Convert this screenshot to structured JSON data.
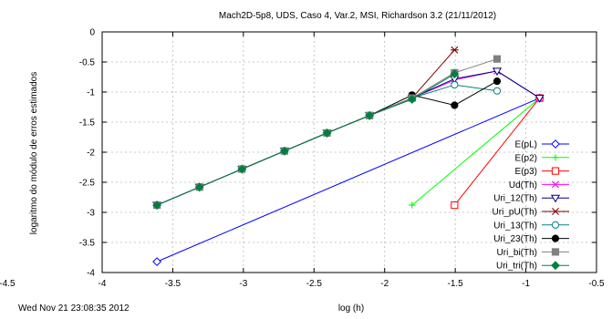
{
  "chart_data": {
    "type": "line",
    "title": "Mach2D-5p8, UDS, Caso 4, Var.2, MSI, Richardson 3.2 (21/11/2012)",
    "xlabel": "log (h)",
    "ylabel": "logaritmo do módulo de erros estimados",
    "footer_timestamp": "Wed Nov 21 23:08:35 2012",
    "corner_tick_left": "-4.5",
    "xlim": [
      -4,
      -0.5
    ],
    "ylim": [
      -4,
      0
    ],
    "xticks": [
      -4,
      -3.5,
      -3,
      -2.5,
      -2,
      -1.5,
      -1,
      -0.5
    ],
    "xtick_labels": [
      "-4",
      "-3.5",
      "-3",
      "-2.5",
      "-2",
      "-1.5",
      "-1",
      "-0.5"
    ],
    "yticks": [
      0,
      -0.5,
      -1,
      -1.5,
      -2,
      -2.5,
      -3,
      -3.5,
      -4
    ],
    "ytick_labels": [
      "0",
      "-0.5",
      "-1",
      "-1.5",
      "-2",
      "-2.5",
      "-3",
      "-3.5",
      "-4"
    ],
    "grid": true,
    "legend_position": "right",
    "series": [
      {
        "name": "E(pL)",
        "color": "#0000ff",
        "marker": "diamond",
        "x": [
          -3.612,
          -0.903
        ],
        "y": [
          -3.82,
          -1.1
        ]
      },
      {
        "name": "E(p2)",
        "color": "#00ff00",
        "marker": "plus",
        "x": [
          -1.806,
          -0.903
        ],
        "y": [
          -2.88,
          -1.1
        ]
      },
      {
        "name": "E(p3)",
        "color": "#ff0000",
        "marker": "square-open",
        "x": [
          -1.505,
          -0.903
        ],
        "y": [
          -2.88,
          -1.1
        ]
      },
      {
        "name": "Ud(Th)",
        "color": "#ff00ff",
        "marker": "x",
        "x": [
          -3.612,
          -3.311,
          -3.01,
          -2.709,
          -2.408,
          -2.107,
          -1.806,
          -1.505,
          -1.204,
          -0.903
        ],
        "y": [
          -2.88,
          -2.58,
          -2.28,
          -1.98,
          -1.68,
          -1.39,
          -1.1,
          -0.8,
          -0.65,
          -1.1
        ]
      },
      {
        "name": "Uri_12(Th)",
        "color": "#000080",
        "marker": "triangle-down",
        "x": [
          -3.612,
          -3.311,
          -3.01,
          -2.709,
          -2.408,
          -2.107,
          -1.806,
          -1.505,
          -1.204,
          -0.903
        ],
        "y": [
          -2.88,
          -2.58,
          -2.28,
          -1.98,
          -1.68,
          -1.39,
          -1.1,
          -0.78,
          -0.65,
          -1.1
        ]
      },
      {
        "name": "Uri_pU(Th)",
        "color": "#800000",
        "marker": "asterisk",
        "x": [
          -3.612,
          -3.311,
          -3.01,
          -2.709,
          -2.408,
          -2.107,
          -1.806,
          -1.505
        ],
        "y": [
          -2.88,
          -2.58,
          -2.28,
          -1.98,
          -1.68,
          -1.39,
          -1.1,
          -0.3
        ]
      },
      {
        "name": "Uri_13(Th)",
        "color": "#008080",
        "marker": "circle-open",
        "x": [
          -3.612,
          -3.311,
          -3.01,
          -2.709,
          -2.408,
          -2.107,
          -1.806,
          -1.505,
          -1.204
        ],
        "y": [
          -2.88,
          -2.58,
          -2.28,
          -1.98,
          -1.68,
          -1.39,
          -1.1,
          -0.88,
          -0.98
        ]
      },
      {
        "name": "Uri_23(Th)",
        "color": "#000000",
        "marker": "circle-filled",
        "x": [
          -3.612,
          -3.311,
          -3.01,
          -2.709,
          -2.408,
          -2.107,
          -1.806,
          -1.505,
          -1.204
        ],
        "y": [
          -2.88,
          -2.58,
          -2.28,
          -1.98,
          -1.68,
          -1.39,
          -1.05,
          -1.22,
          -0.82
        ]
      },
      {
        "name": "Uri_bi(Th)",
        "color": "#808080",
        "marker": "square-filled",
        "x": [
          -3.612,
          -3.311,
          -3.01,
          -2.709,
          -2.408,
          -2.107,
          -1.806,
          -1.505,
          -1.204
        ],
        "y": [
          -2.88,
          -2.58,
          -2.28,
          -1.98,
          -1.68,
          -1.39,
          -1.1,
          -0.68,
          -0.45
        ]
      },
      {
        "name": "Uri_tri(Th)",
        "color": "#008040",
        "marker": "diamond-filled",
        "x": [
          -3.612,
          -3.311,
          -3.01,
          -2.709,
          -2.408,
          -2.107,
          -1.806,
          -1.505
        ],
        "y": [
          -2.88,
          -2.58,
          -2.28,
          -1.98,
          -1.68,
          -1.39,
          -1.12,
          -0.7
        ]
      }
    ]
  }
}
